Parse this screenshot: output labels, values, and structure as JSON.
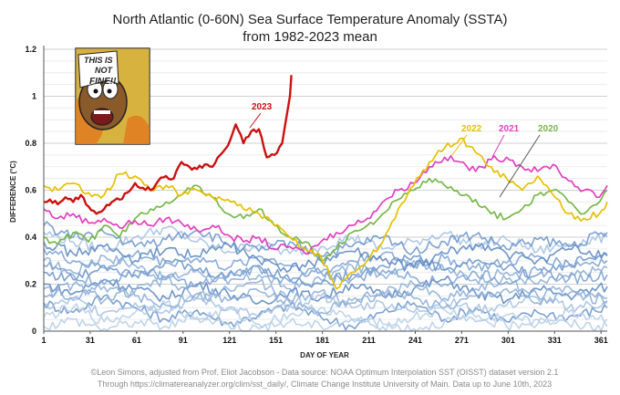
{
  "chart_data": {
    "type": "line",
    "title_line1": "North Atlantic (0-60N) Sea Surface Temperature Anomaly (SSTA)",
    "title_line2": "from 1982-2023 mean",
    "xlabel": "DAY OF YEAR",
    "ylabel": "DIFFERENCE (°C)",
    "xlim": [
      1,
      365
    ],
    "ylim": [
      0,
      1.2
    ],
    "x_ticks": [
      1,
      31,
      61,
      91,
      121,
      151,
      181,
      211,
      241,
      271,
      301,
      331,
      361
    ],
    "y_ticks": [
      0,
      0.2,
      0.4,
      0.6,
      0.8,
      1,
      1.2
    ],
    "y_tick_labels": [
      "0",
      "0.2",
      "0.4",
      "0.6",
      "0.8",
      "1",
      "1.2"
    ],
    "grid": true,
    "highlighted_series": [
      {
        "name": "2023",
        "color": "#cc1111",
        "x": [
          1,
          5,
          10,
          15,
          20,
          25,
          30,
          35,
          40,
          45,
          50,
          55,
          60,
          65,
          70,
          75,
          80,
          85,
          90,
          95,
          100,
          105,
          110,
          115,
          120,
          125,
          130,
          135,
          140,
          145,
          150,
          155,
          160,
          161
        ],
        "values": [
          0.55,
          0.56,
          0.54,
          0.57,
          0.55,
          0.58,
          0.53,
          0.5,
          0.52,
          0.55,
          0.56,
          0.59,
          0.63,
          0.61,
          0.6,
          0.64,
          0.66,
          0.65,
          0.72,
          0.7,
          0.69,
          0.71,
          0.7,
          0.75,
          0.79,
          0.88,
          0.8,
          0.85,
          0.86,
          0.74,
          0.75,
          0.8,
          1.0,
          1.09
        ]
      },
      {
        "name": "2022",
        "color": "#e6c000",
        "x": [
          1,
          10,
          20,
          30,
          40,
          50,
          60,
          70,
          80,
          90,
          100,
          110,
          120,
          130,
          140,
          150,
          160,
          170,
          180,
          190,
          200,
          210,
          220,
          230,
          240,
          250,
          260,
          270,
          280,
          290,
          300,
          310,
          320,
          330,
          340,
          350,
          360,
          365
        ],
        "values": [
          0.62,
          0.6,
          0.63,
          0.59,
          0.58,
          0.67,
          0.66,
          0.6,
          0.62,
          0.58,
          0.6,
          0.57,
          0.56,
          0.52,
          0.5,
          0.45,
          0.4,
          0.35,
          0.32,
          0.18,
          0.25,
          0.3,
          0.38,
          0.52,
          0.62,
          0.72,
          0.78,
          0.82,
          0.76,
          0.7,
          0.65,
          0.6,
          0.66,
          0.58,
          0.5,
          0.48,
          0.5,
          0.55
        ]
      },
      {
        "name": "2021",
        "color": "#e040c0",
        "x": [
          1,
          10,
          20,
          30,
          40,
          50,
          60,
          70,
          80,
          90,
          100,
          110,
          120,
          130,
          140,
          150,
          160,
          170,
          180,
          190,
          200,
          210,
          220,
          230,
          240,
          250,
          260,
          270,
          280,
          290,
          300,
          310,
          320,
          330,
          340,
          350,
          360,
          365
        ],
        "values": [
          0.52,
          0.48,
          0.5,
          0.46,
          0.48,
          0.44,
          0.47,
          0.45,
          0.48,
          0.46,
          0.43,
          0.45,
          0.41,
          0.38,
          0.4,
          0.35,
          0.36,
          0.33,
          0.38,
          0.42,
          0.45,
          0.48,
          0.55,
          0.6,
          0.63,
          0.7,
          0.74,
          0.72,
          0.68,
          0.73,
          0.74,
          0.7,
          0.68,
          0.71,
          0.64,
          0.6,
          0.57,
          0.62
        ]
      },
      {
        "name": "2020",
        "color": "#77b84a",
        "x": [
          1,
          10,
          20,
          30,
          40,
          50,
          60,
          70,
          80,
          90,
          100,
          110,
          120,
          130,
          140,
          150,
          160,
          170,
          180,
          190,
          200,
          210,
          220,
          230,
          240,
          250,
          260,
          270,
          280,
          290,
          300,
          310,
          320,
          330,
          340,
          350,
          360,
          365
        ],
        "values": [
          0.4,
          0.37,
          0.42,
          0.38,
          0.45,
          0.4,
          0.48,
          0.52,
          0.55,
          0.58,
          0.62,
          0.57,
          0.5,
          0.48,
          0.52,
          0.45,
          0.4,
          0.38,
          0.3,
          0.35,
          0.42,
          0.45,
          0.5,
          0.56,
          0.6,
          0.65,
          0.62,
          0.58,
          0.56,
          0.5,
          0.48,
          0.52,
          0.58,
          0.6,
          0.55,
          0.5,
          0.55,
          0.6
        ]
      }
    ],
    "background_series_note": "Years 1982-2019 drawn in light blue",
    "background_series": [
      {
        "x": [
          1,
          20,
          40,
          60,
          80,
          100,
          120,
          140,
          160,
          180,
          200,
          220,
          240,
          260,
          280,
          300,
          320,
          340,
          365
        ],
        "values": [
          0.3,
          0.25,
          0.32,
          0.28,
          0.22,
          0.26,
          0.2,
          0.24,
          0.18,
          0.22,
          0.28,
          0.24,
          0.3,
          0.26,
          0.22,
          0.25,
          0.2,
          0.23,
          0.27
        ]
      },
      {
        "x": [
          1,
          20,
          40,
          60,
          80,
          100,
          120,
          140,
          160,
          180,
          200,
          220,
          240,
          260,
          280,
          300,
          320,
          340,
          365
        ],
        "values": [
          0.12,
          0.08,
          0.15,
          0.1,
          0.05,
          0.09,
          0.03,
          0.07,
          0.11,
          0.06,
          0.02,
          0.08,
          0.12,
          0.05,
          0.1,
          0.04,
          0.08,
          0.06,
          0.1
        ]
      },
      {
        "x": [
          1,
          20,
          40,
          60,
          80,
          100,
          120,
          140,
          160,
          180,
          200,
          220,
          240,
          260,
          280,
          300,
          320,
          340,
          365
        ],
        "values": [
          0.42,
          0.38,
          0.35,
          0.4,
          0.44,
          0.38,
          0.34,
          0.37,
          0.33,
          0.36,
          0.4,
          0.35,
          0.38,
          0.42,
          0.36,
          0.39,
          0.34,
          0.37,
          0.4
        ]
      },
      {
        "x": [
          1,
          20,
          40,
          60,
          80,
          100,
          120,
          140,
          160,
          180,
          200,
          220,
          240,
          260,
          280,
          300,
          320,
          340,
          365
        ],
        "values": [
          0.2,
          0.16,
          0.22,
          0.18,
          0.14,
          0.2,
          0.16,
          0.12,
          0.17,
          0.14,
          0.2,
          0.15,
          0.18,
          0.22,
          0.16,
          0.13,
          0.18,
          0.15,
          0.19
        ]
      },
      {
        "x": [
          1,
          20,
          40,
          60,
          80,
          100,
          120,
          140,
          160,
          180,
          200,
          220,
          240,
          260,
          280,
          300,
          320,
          340,
          365
        ],
        "values": [
          0.06,
          0.1,
          0.04,
          0.08,
          0.12,
          0.05,
          0.09,
          0.03,
          0.07,
          0.1,
          0.05,
          0.02,
          0.06,
          0.09,
          0.04,
          0.07,
          0.03,
          0.08,
          0.05
        ]
      },
      {
        "x": [
          1,
          20,
          40,
          60,
          80,
          100,
          120,
          140,
          160,
          180,
          200,
          220,
          240,
          260,
          280,
          300,
          320,
          340,
          365
        ],
        "values": [
          0.35,
          0.3,
          0.27,
          0.33,
          0.29,
          0.31,
          0.27,
          0.32,
          0.28,
          0.25,
          0.3,
          0.33,
          0.28,
          0.31,
          0.27,
          0.29,
          0.32,
          0.28,
          0.3
        ]
      },
      {
        "x": [
          1,
          20,
          40,
          60,
          80,
          100,
          120,
          140,
          160,
          180,
          200,
          220,
          240,
          260,
          280,
          300,
          320,
          340,
          365
        ],
        "values": [
          0.15,
          0.2,
          0.13,
          0.17,
          0.22,
          0.14,
          0.18,
          0.21,
          0.13,
          0.17,
          0.12,
          0.16,
          0.2,
          0.14,
          0.18,
          0.22,
          0.15,
          0.19,
          0.14
        ]
      },
      {
        "x": [
          1,
          20,
          40,
          60,
          80,
          100,
          120,
          140,
          160,
          180,
          200,
          220,
          240,
          260,
          280,
          300,
          320,
          340,
          365
        ],
        "values": [
          0.25,
          0.22,
          0.28,
          0.24,
          0.3,
          0.26,
          0.23,
          0.28,
          0.22,
          0.2,
          0.24,
          0.28,
          0.32,
          0.26,
          0.3,
          0.27,
          0.24,
          0.29,
          0.33
        ]
      },
      {
        "x": [
          1,
          20,
          40,
          60,
          80,
          100,
          120,
          140,
          160,
          180,
          200,
          220,
          240,
          260,
          280,
          300,
          320,
          340,
          365
        ],
        "values": [
          0.1,
          0.13,
          0.08,
          0.12,
          0.09,
          0.14,
          0.1,
          0.06,
          0.11,
          0.15,
          0.1,
          0.12,
          0.08,
          0.13,
          0.09,
          0.11,
          0.14,
          0.1,
          0.12
        ]
      },
      {
        "x": [
          1,
          20,
          40,
          60,
          80,
          100,
          120,
          140,
          160,
          180,
          200,
          220,
          240,
          260,
          280,
          300,
          320,
          340,
          365
        ],
        "values": [
          0.38,
          0.33,
          0.36,
          0.3,
          0.35,
          0.32,
          0.37,
          0.3,
          0.26,
          0.3,
          0.34,
          0.3,
          0.27,
          0.33,
          0.37,
          0.33,
          0.3,
          0.35,
          0.32
        ]
      },
      {
        "x": [
          1,
          20,
          40,
          60,
          80,
          100,
          120,
          140,
          160,
          180,
          200,
          220,
          240,
          260,
          280,
          300,
          320,
          340,
          365
        ],
        "values": [
          0.02,
          0.05,
          0.01,
          0.04,
          0.02,
          0.06,
          0.03,
          0.01,
          0.04,
          0.02,
          0.05,
          0.03,
          0.01,
          0.04,
          0.06,
          0.02,
          0.05,
          0.03,
          0.02
        ]
      },
      {
        "x": [
          1,
          20,
          40,
          60,
          80,
          100,
          120,
          140,
          160,
          180,
          200,
          220,
          240,
          260,
          280,
          300,
          320,
          340,
          365
        ],
        "values": [
          0.28,
          0.24,
          0.2,
          0.26,
          0.23,
          0.19,
          0.24,
          0.27,
          0.21,
          0.25,
          0.22,
          0.26,
          0.23,
          0.2,
          0.25,
          0.21,
          0.26,
          0.22,
          0.24
        ]
      },
      {
        "x": [
          1,
          20,
          40,
          60,
          80,
          100,
          120,
          140,
          160,
          180,
          200,
          220,
          240,
          260,
          280,
          300,
          320,
          340,
          365
        ],
        "values": [
          0.18,
          0.14,
          0.19,
          0.15,
          0.11,
          0.16,
          0.13,
          0.17,
          0.12,
          0.08,
          0.13,
          0.17,
          0.14,
          0.1,
          0.15,
          0.18,
          0.12,
          0.16,
          0.13
        ]
      },
      {
        "x": [
          1,
          20,
          40,
          60,
          80,
          100,
          120,
          140,
          160,
          180,
          200,
          220,
          240,
          260,
          280,
          300,
          320,
          340,
          365
        ],
        "values": [
          0.45,
          0.4,
          0.42,
          0.36,
          0.39,
          0.43,
          0.37,
          0.34,
          0.38,
          0.32,
          0.36,
          0.4,
          0.34,
          0.38,
          0.41,
          0.35,
          0.39,
          0.36,
          0.42
        ]
      }
    ],
    "background_color": "#8fb0d8",
    "series_label_colors": {
      "2023": "#cc1111",
      "2022": "#e6c000",
      "2021": "#e040c0",
      "2020": "#77b84a"
    },
    "footer_line1": "©Leon Simons, adjusted from Prof. Eliot Jacobson - Data source: NOAA Optimum Interpolation SST (OISST) dataset version 2.1",
    "footer_line2": "Through https://climatereanalyzer.org/clim/sst_daily/, Climate Change Institute University of Main. Data up to June 10th, 2023",
    "comic_inset": {
      "text_line1": "THIS IS",
      "text_line2": "NOT",
      "text_line3": "FINE!!"
    }
  }
}
